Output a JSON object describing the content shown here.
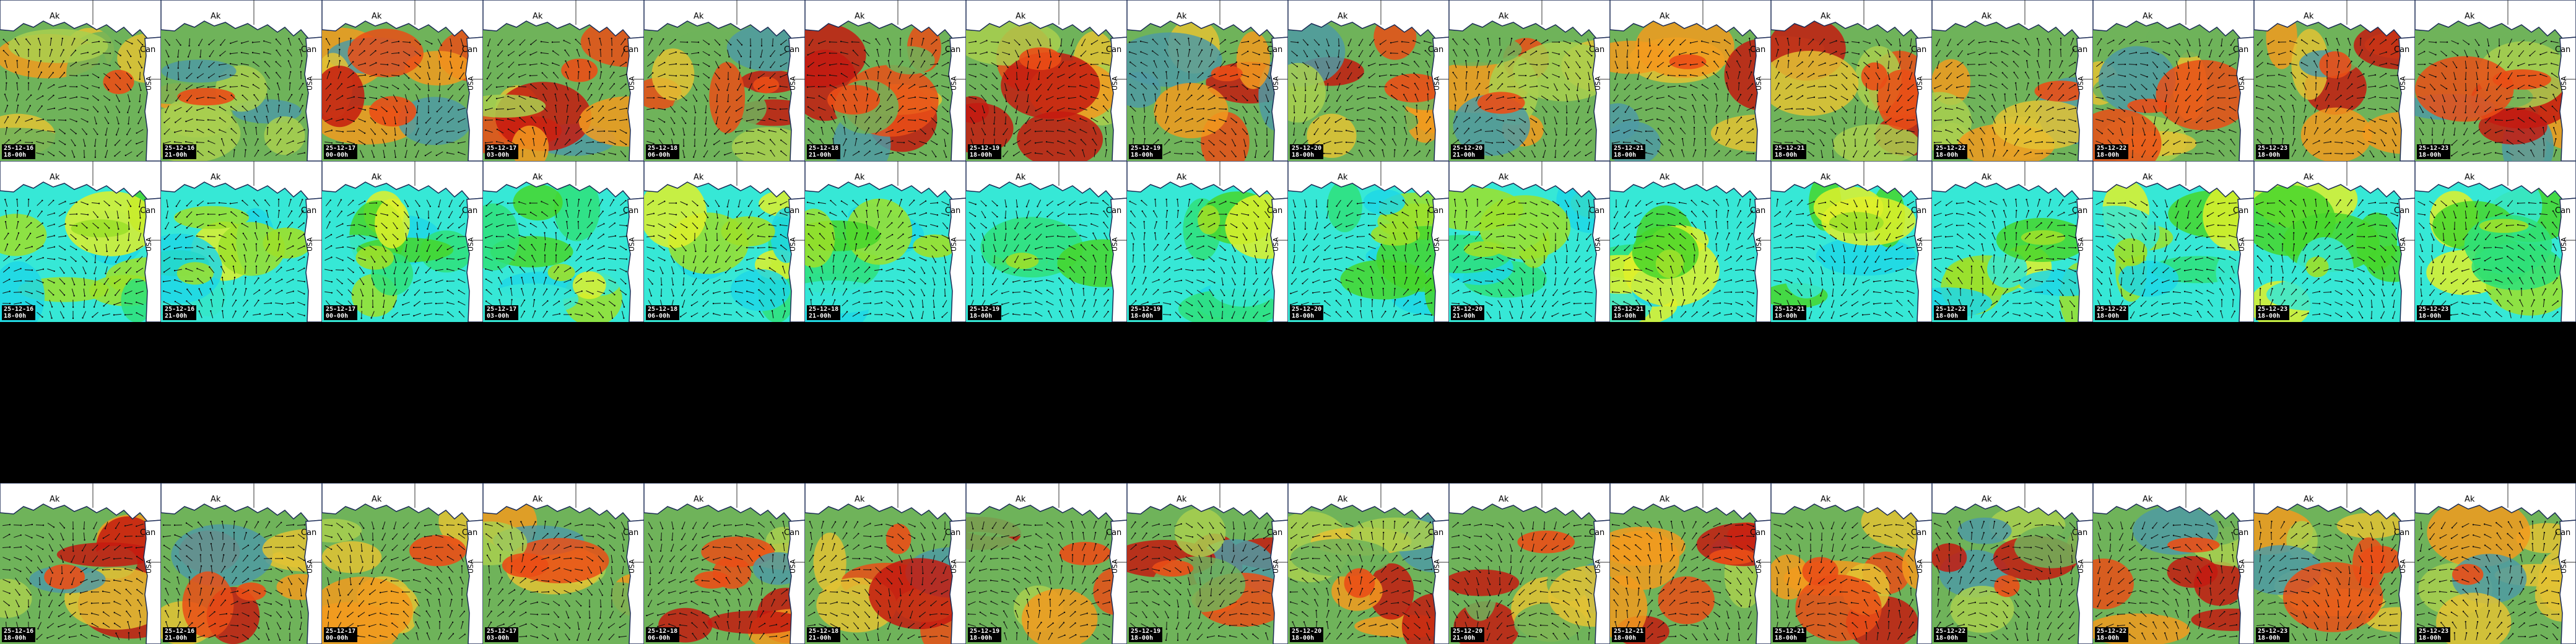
{
  "map_labels": {
    "alaska": "Ak",
    "canada": "Can",
    "usa": "USA"
  },
  "colors": {
    "warm_palette": [
      "#4f9aa3",
      "#6fb35a",
      "#a9cf4f",
      "#e3c234",
      "#f29a1e",
      "#ea4e16",
      "#c41a10"
    ],
    "cool_palette": [
      "#1fd7e6",
      "#36e8d6",
      "#2fe07a",
      "#46d62c",
      "#9ce02a",
      "#dff02a"
    ],
    "land": "#ffffff",
    "background": "#000000"
  },
  "rows": [
    {
      "id": "row-1",
      "palette": "warm",
      "present": true
    },
    {
      "id": "row-2",
      "palette": "cool",
      "present": true
    },
    {
      "id": "row-3",
      "palette": "none",
      "present": false
    },
    {
      "id": "row-4",
      "palette": "warm",
      "present": true
    }
  ],
  "frames": [
    {
      "date": "25-12-16",
      "hour": "18-00h"
    },
    {
      "date": "25-12-16",
      "hour": "21-00h"
    },
    {
      "date": "25-12-17",
      "hour": "00-00h"
    },
    {
      "date": "25-12-17",
      "hour": "03-00h"
    },
    {
      "date": "25-12-18",
      "hour": "06-00h"
    },
    {
      "date": "25-12-18",
      "hour": "21-00h"
    },
    {
      "date": "25-12-19",
      "hour": "18-00h"
    },
    {
      "date": "25-12-19",
      "hour": "18-00h"
    },
    {
      "date": "25-12-20",
      "hour": "18-00h"
    },
    {
      "date": "25-12-20",
      "hour": "21-00h"
    },
    {
      "date": "25-12-21",
      "hour": "18-00h"
    },
    {
      "date": "25-12-21",
      "hour": "18-00h"
    },
    {
      "date": "25-12-22",
      "hour": "18-00h"
    },
    {
      "date": "25-12-22",
      "hour": "18-00h"
    },
    {
      "date": "25-12-23",
      "hour": "18-00h"
    },
    {
      "date": "25-12-23",
      "hour": "18-00h"
    }
  ]
}
